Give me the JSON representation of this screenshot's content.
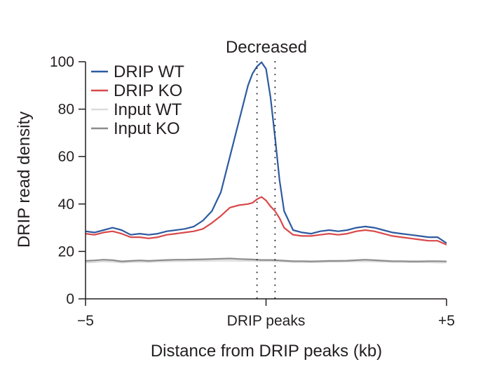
{
  "chart_data": {
    "type": "line",
    "title": "",
    "annotation": "Decreased",
    "xlabel": "Distance from DRIP peaks (kb)",
    "ylabel": "DRIP read density",
    "xlim": [
      -5,
      5
    ],
    "ylim": [
      0,
      100
    ],
    "x_ticks": [
      {
        "value": -5,
        "label": "−5"
      },
      {
        "value": 0,
        "label": "DRIP peaks"
      },
      {
        "value": 5,
        "label": "+5"
      }
    ],
    "y_ticks": [
      0,
      20,
      40,
      60,
      80,
      100
    ],
    "peak_region_markers": [
      -0.25,
      0.25
    ],
    "legend_position": "top-left",
    "x": [
      -5.0,
      -4.75,
      -4.5,
      -4.25,
      -4.0,
      -3.75,
      -3.5,
      -3.25,
      -3.0,
      -2.75,
      -2.5,
      -2.25,
      -2.0,
      -1.75,
      -1.5,
      -1.25,
      -1.0,
      -0.75,
      -0.5,
      -0.375,
      -0.25,
      -0.125,
      0.0,
      0.125,
      0.25,
      0.375,
      0.5,
      0.75,
      1.0,
      1.25,
      1.5,
      1.75,
      2.0,
      2.25,
      2.5,
      2.75,
      3.0,
      3.25,
      3.5,
      3.75,
      4.0,
      4.25,
      4.5,
      4.75,
      5.0
    ],
    "series": [
      {
        "name": "DRIP WT",
        "color": "#2e5aa0",
        "values": [
          28.5,
          28.0,
          29.0,
          30.0,
          29.0,
          27.0,
          27.5,
          27.0,
          27.5,
          28.5,
          29.0,
          29.5,
          30.5,
          33.0,
          37.0,
          45.0,
          60.0,
          75.0,
          90.0,
          95.0,
          98.0,
          99.8,
          97.0,
          85.0,
          68.0,
          50.0,
          37.0,
          29.0,
          28.0,
          27.5,
          28.5,
          29.0,
          28.5,
          29.0,
          30.0,
          30.5,
          30.0,
          29.0,
          28.0,
          27.5,
          27.0,
          26.5,
          26.0,
          26.0,
          23.5
        ]
      },
      {
        "name": "DRIP KO",
        "color": "#d9484a",
        "values": [
          27.5,
          27.0,
          28.0,
          28.5,
          27.5,
          26.0,
          26.0,
          25.5,
          26.0,
          27.0,
          27.5,
          28.0,
          28.5,
          29.5,
          32.0,
          35.0,
          38.5,
          39.5,
          40.0,
          40.5,
          42.0,
          43.0,
          41.5,
          39.0,
          37.0,
          34.0,
          30.0,
          27.0,
          26.5,
          26.5,
          27.0,
          27.5,
          27.0,
          27.5,
          28.5,
          29.0,
          28.5,
          27.5,
          26.5,
          26.0,
          25.5,
          25.0,
          24.5,
          24.5,
          22.8
        ]
      },
      {
        "name": "Input WT",
        "color": "#dcdcdc",
        "values": [
          15.3,
          15.5,
          15.8,
          15.6,
          15.3,
          15.5,
          15.6,
          15.5,
          15.7,
          15.8,
          15.9,
          15.9,
          16.0,
          16.0,
          16.1,
          16.1,
          16.1,
          16.0,
          16.0,
          16.0,
          15.9,
          15.9,
          15.9,
          15.9,
          15.8,
          15.8,
          15.7,
          15.5,
          15.5,
          15.4,
          15.5,
          15.6,
          15.6,
          15.7,
          15.8,
          15.8,
          15.7,
          15.6,
          15.5,
          15.5,
          15.4,
          15.4,
          15.4,
          15.3,
          15.3
        ]
      },
      {
        "name": "Input KO",
        "color": "#8c8c8c",
        "values": [
          16.0,
          16.2,
          16.5,
          16.3,
          15.8,
          16.0,
          16.2,
          16.0,
          16.2,
          16.4,
          16.5,
          16.5,
          16.6,
          16.7,
          16.8,
          16.9,
          17.0,
          16.8,
          16.7,
          16.6,
          16.5,
          16.4,
          16.4,
          16.4,
          16.3,
          16.2,
          16.1,
          15.9,
          15.9,
          15.8,
          15.9,
          16.0,
          16.0,
          16.1,
          16.3,
          16.5,
          16.3,
          16.1,
          15.9,
          15.9,
          15.8,
          15.8,
          15.9,
          15.9,
          15.8
        ]
      }
    ]
  }
}
